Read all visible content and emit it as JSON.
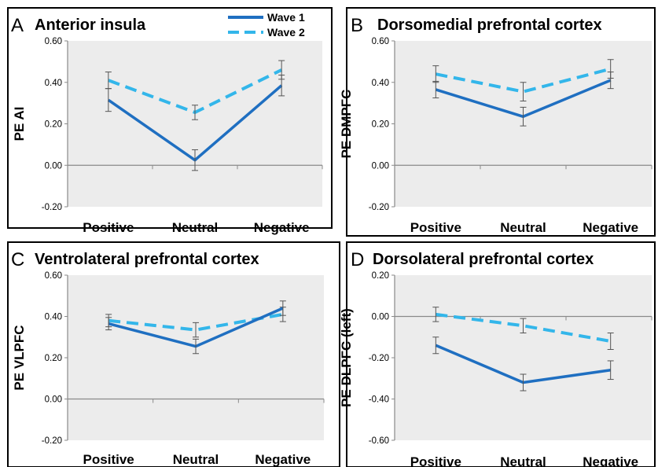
{
  "colors": {
    "wave1": "#1f6fc1",
    "wave2": "#33b6ea",
    "plot_background": "#ececec",
    "frame": "#000000"
  },
  "legend": {
    "position": "top-right of panel A",
    "entries": [
      {
        "label": "Wave 1",
        "style": "solid"
      },
      {
        "label": "Wave 2",
        "style": "dashed"
      }
    ]
  },
  "chart_data": [
    {
      "type": "line",
      "panel_letter": "A",
      "title": "Anterior insula",
      "ylabel": "PE AI",
      "xlabel": "",
      "categories": [
        "Positive",
        "Neutral",
        "Negative"
      ],
      "ylim": [
        -0.2,
        0.6
      ],
      "yticks": [
        "0.60",
        "0.40",
        "0.20",
        "0.00",
        "-0.20"
      ],
      "grid": false,
      "series": [
        {
          "name": "Wave 1",
          "values": [
            0.315,
            0.025,
            0.385
          ],
          "errors": [
            0.055,
            0.05,
            0.05
          ]
        },
        {
          "name": "Wave 2",
          "values": [
            0.41,
            0.255,
            0.46
          ],
          "errors": [
            0.04,
            0.035,
            0.045
          ]
        }
      ]
    },
    {
      "type": "line",
      "panel_letter": "B",
      "title": "Dorsomedial prefrontal cortex",
      "ylabel": "PE DMPFC",
      "xlabel": "",
      "categories": [
        "Positive",
        "Neutral",
        "Negative"
      ],
      "ylim": [
        -0.2,
        0.6
      ],
      "yticks": [
        "0.60",
        "0.40",
        "0.20",
        "0.00",
        "-0.20"
      ],
      "grid": false,
      "series": [
        {
          "name": "Wave 1",
          "values": [
            0.365,
            0.235,
            0.41
          ],
          "errors": [
            0.04,
            0.045,
            0.04
          ]
        },
        {
          "name": "Wave 2",
          "values": [
            0.44,
            0.355,
            0.465
          ],
          "errors": [
            0.04,
            0.045,
            0.045
          ]
        }
      ]
    },
    {
      "type": "line",
      "panel_letter": "C",
      "title": "Ventrolateral prefrontal cortex",
      "ylabel": "PE VLPFC",
      "xlabel": "",
      "categories": [
        "Positive",
        "Neutral",
        "Negative"
      ],
      "ylim": [
        -0.2,
        0.6
      ],
      "yticks": [
        "0.60",
        "0.40",
        "0.20",
        "0.00",
        "-0.20"
      ],
      "grid": false,
      "series": [
        {
          "name": "Wave 1",
          "values": [
            0.365,
            0.255,
            0.44
          ],
          "errors": [
            0.03,
            0.035,
            0.035
          ]
        },
        {
          "name": "Wave 2",
          "values": [
            0.38,
            0.335,
            0.41
          ],
          "errors": [
            0.03,
            0.035,
            0.035
          ]
        }
      ]
    },
    {
      "type": "line",
      "panel_letter": "D",
      "title": "Dorsolateral prefrontal cortex",
      "ylabel": "PE DLPFC (left)",
      "xlabel": "",
      "categories": [
        "Positive",
        "Neutral",
        "Negative"
      ],
      "ylim": [
        -0.6,
        0.2
      ],
      "yticks": [
        "0.20",
        "0.00",
        "-0.20",
        "-0.40",
        "-0.60"
      ],
      "grid": false,
      "series": [
        {
          "name": "Wave 1",
          "values": [
            -0.14,
            -0.32,
            -0.26
          ],
          "errors": [
            0.04,
            0.04,
            0.045
          ]
        },
        {
          "name": "Wave 2",
          "values": [
            0.01,
            -0.045,
            -0.12
          ],
          "errors": [
            0.035,
            0.035,
            0.04
          ]
        }
      ]
    }
  ]
}
